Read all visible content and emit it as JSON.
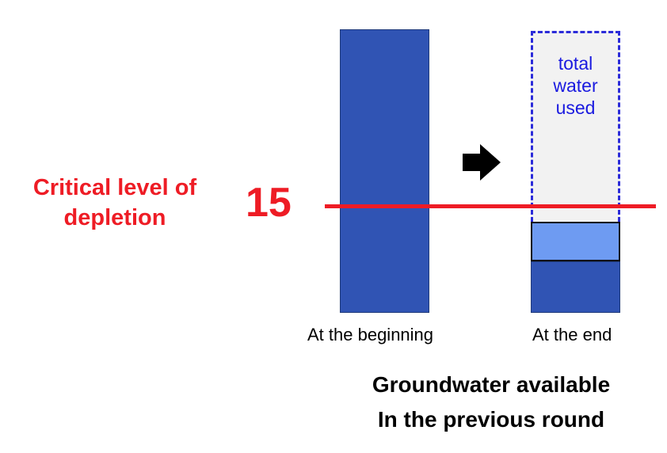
{
  "critical": {
    "label_line1": "Critical level of",
    "label_line2": "depletion",
    "value": "15",
    "color": "#ee1c25"
  },
  "bars": {
    "begin_caption": "At the beginning",
    "end_caption": "At the end",
    "used_line1": "total",
    "used_line2": "water",
    "used_line3": "used",
    "dark_color": "#3054b4",
    "light_color": "#6e9bf2",
    "dash_color": "#2b2bd9"
  },
  "arrow": {
    "icon": "right-arrow-icon"
  },
  "footer": {
    "line1": "Groundwater available",
    "line2": "In the previous round"
  }
}
